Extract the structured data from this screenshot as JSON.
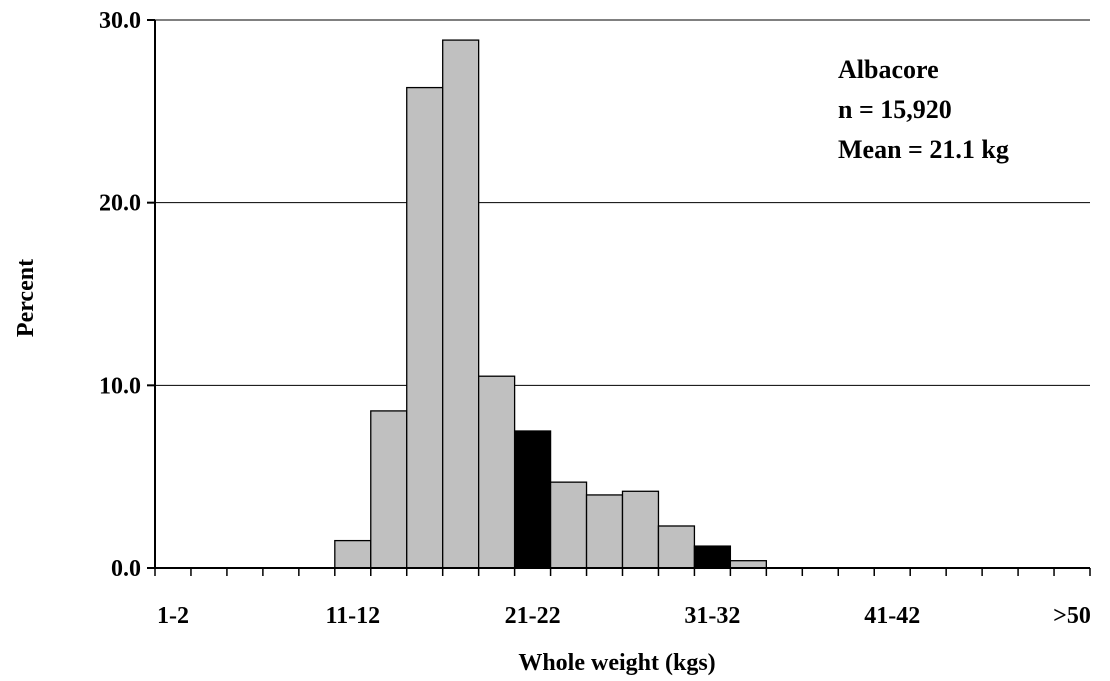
{
  "chart_data": {
    "type": "bar",
    "xlabel": "Whole weight (kgs)",
    "ylabel": "Percent",
    "ylim": [
      0,
      30
    ],
    "yticks": [
      "0.0",
      "10.0",
      "20.0",
      "30.0"
    ],
    "ytick_values": [
      0,
      10,
      20,
      30
    ],
    "bin_labels": [
      "1-2",
      "3-4",
      "5-6",
      "7-8",
      "9-10",
      "11-12",
      "13-14",
      "15-16",
      "17-18",
      "19-20",
      "21-22",
      "23-24",
      "25-26",
      "27-28",
      "29-30",
      "31-32",
      "33-34",
      "35-36",
      "37-38",
      "39-40",
      "41-42",
      "43-44",
      "45-46",
      "47-48",
      "49-50",
      ">50"
    ],
    "visible_tick_labels": [
      "1-2",
      "11-12",
      "21-22",
      "31-32",
      "41-42",
      ">50"
    ],
    "values": [
      0,
      0,
      0,
      0,
      0,
      1.5,
      8.6,
      26.3,
      28.9,
      10.5,
      7.5,
      4.7,
      4.0,
      4.2,
      2.3,
      1.2,
      0.4,
      0,
      0,
      0,
      0,
      0,
      0,
      0,
      0,
      0
    ],
    "highlighted_bins": [
      "21-22",
      "31-32"
    ],
    "colors": {
      "bar": "#c0c0c0",
      "highlight": "#000000",
      "outline": "#000000",
      "grid": "#000000"
    },
    "grid": "horizontal",
    "legend": "none",
    "annotation": {
      "species": "Albacore",
      "n": "n = 15,920",
      "mean": "Mean = 21.1 kg",
      "placement": "top-right"
    }
  }
}
